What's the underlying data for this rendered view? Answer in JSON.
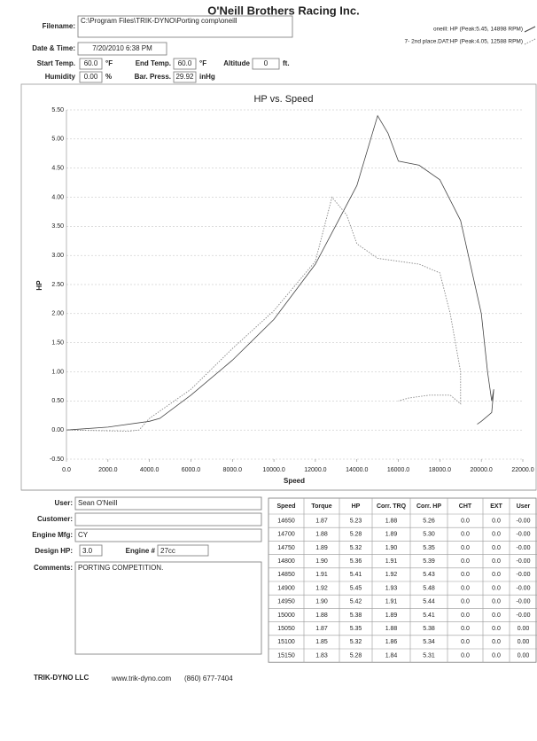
{
  "header": {
    "title": "O'Neill Brothers Racing Inc.",
    "filename": {
      "label": "Filename:",
      "value": "C:\\Program Files\\TRIK-DYNO\\Porting comp\\oneill"
    },
    "date_time": {
      "label": "Date & Time:",
      "value": "7/20/2010 6:38 PM"
    },
    "start_temp": {
      "label": "Start Temp.",
      "value": "60.0",
      "unit": "°F"
    },
    "end_temp": {
      "label": "End Temp.",
      "value": "60.0",
      "unit": "°F"
    },
    "altitude": {
      "label": "Altitude",
      "value": "0",
      "unit": "ft."
    },
    "humidity": {
      "label": "Humidity",
      "value": "0.00",
      "unit": "%"
    },
    "bar_press": {
      "label": "Bar. Press.",
      "value": "29.92",
      "unit": "inHg"
    }
  },
  "chart_data": {
    "type": "line",
    "title": "HP vs. Speed",
    "x_label": "Speed",
    "y_label": "HP",
    "xlim": [
      0,
      22000
    ],
    "ylim": [
      -0.5,
      5.5
    ],
    "grid": true,
    "legend": "top-right",
    "xticks": [
      {
        "value": 0,
        "label": "0.0"
      },
      {
        "value": 2000,
        "label": "2000.0"
      },
      {
        "value": 4000,
        "label": "4000.0"
      },
      {
        "value": 6000,
        "label": "6000.0"
      },
      {
        "value": 8000,
        "label": "8000.0"
      },
      {
        "value": 10000,
        "label": "10000.0"
      },
      {
        "value": 12000,
        "label": "12000.0"
      },
      {
        "value": 14000,
        "label": "14000.0"
      },
      {
        "value": 16000,
        "label": "16000.0"
      },
      {
        "value": 18000,
        "label": "18000.0"
      },
      {
        "value": 20000,
        "label": "20000.0"
      },
      {
        "value": 22000,
        "label": "22000.0"
      }
    ],
    "yticks": [
      {
        "value": -0.5,
        "label": "-0.50"
      },
      {
        "value": 0,
        "label": "0.00"
      },
      {
        "value": 0.5,
        "label": "0.50"
      },
      {
        "value": 1,
        "label": "1.00"
      },
      {
        "value": 1.5,
        "label": "1.50"
      },
      {
        "value": 2,
        "label": "2.00"
      },
      {
        "value": 2.5,
        "label": "2.50"
      },
      {
        "value": 3,
        "label": "3.00"
      },
      {
        "value": 3.5,
        "label": "3.50"
      },
      {
        "value": 4,
        "label": "4.00"
      },
      {
        "value": 4.5,
        "label": "4.50"
      },
      {
        "value": 5,
        "label": "5.00"
      },
      {
        "value": 5.5,
        "label": "5.50"
      }
    ],
    "series": [
      {
        "name": "oneill: HP (Peak:5.45, 14898 RPM)",
        "color": "#444444",
        "style": "solid",
        "x": [
          0,
          2000,
          4000,
          4500,
          6000,
          8000,
          10000,
          12000,
          14000,
          15000,
          15500,
          16000,
          17000,
          18000,
          19000,
          20000,
          20300,
          20500,
          20600,
          20500,
          20000,
          19800
        ],
        "values": [
          0,
          0.05,
          0.15,
          0.2,
          0.6,
          1.2,
          1.9,
          2.85,
          4.2,
          5.4,
          5.1,
          4.62,
          4.55,
          4.3,
          3.6,
          2.0,
          1.0,
          0.5,
          0.7,
          0.3,
          0.15,
          0.1
        ]
      },
      {
        "name": "7- 2nd place.DAT:HP (Peak:4.05, 12588 RPM)",
        "color": "#888888",
        "style": "dotted",
        "x": [
          0,
          3000,
          3500,
          4000,
          6000,
          8000,
          10000,
          12000,
          12800,
          13500,
          14000,
          15000,
          16000,
          17000,
          18000,
          18500,
          19000,
          19000,
          18500,
          17500,
          16500,
          16000
        ],
        "values": [
          0,
          -0.02,
          0,
          0.2,
          0.7,
          1.4,
          2.05,
          2.9,
          4.0,
          3.7,
          3.2,
          2.95,
          2.9,
          2.85,
          2.7,
          2.0,
          1.0,
          0.45,
          0.6,
          0.6,
          0.55,
          0.5
        ]
      }
    ]
  },
  "form": {
    "user": {
      "label": "User:",
      "value": "Sean O'Neill"
    },
    "customer": {
      "label": "Customer:"
    },
    "engine_mfg": {
      "label": "Engine Mfg:",
      "value": "CY"
    },
    "design_hp": {
      "label": "Design HP:",
      "value": "3.0"
    },
    "engine_no": {
      "label": "Engine #",
      "value": "27cc"
    },
    "comments": {
      "label": "Comments:",
      "value": "PORTING COMPETITION."
    }
  },
  "table": {
    "columns": [
      "Speed",
      "Torque",
      "HP",
      "Corr. TRQ",
      "Corr. HP",
      "CHT",
      "EXT",
      "User"
    ],
    "rows": [
      [
        "14650",
        "1.87",
        "5.23",
        "1.88",
        "5.26",
        "0.0",
        "0.0",
        "-0.00"
      ],
      [
        "14700",
        "1.88",
        "5.28",
        "1.89",
        "5.30",
        "0.0",
        "0.0",
        "-0.00"
      ],
      [
        "14750",
        "1.89",
        "5.32",
        "1.90",
        "5.35",
        "0.0",
        "0.0",
        "-0.00"
      ],
      [
        "14800",
        "1.90",
        "5.36",
        "1.91",
        "5.39",
        "0.0",
        "0.0",
        "-0.00"
      ],
      [
        "14850",
        "1.91",
        "5.41",
        "1.92",
        "5.43",
        "0.0",
        "0.0",
        "-0.00"
      ],
      [
        "14900",
        "1.92",
        "5.45",
        "1.93",
        "5.48",
        "0.0",
        "0.0",
        "-0.00"
      ],
      [
        "14950",
        "1.90",
        "5.42",
        "1.91",
        "5.44",
        "0.0",
        "0.0",
        "-0.00"
      ],
      [
        "15000",
        "1.88",
        "5.38",
        "1.89",
        "5.41",
        "0.0",
        "0.0",
        "-0.00"
      ],
      [
        "15050",
        "1.87",
        "5.35",
        "1.88",
        "5.38",
        "0.0",
        "0.0",
        "0.00"
      ],
      [
        "15100",
        "1.85",
        "5.32",
        "1.86",
        "5.34",
        "0.0",
        "0.0",
        "0.00"
      ],
      [
        "15150",
        "1.83",
        "5.28",
        "1.84",
        "5.31",
        "0.0",
        "0.0",
        "0.00"
      ]
    ]
  },
  "footer": {
    "company": "TRIK-DYNO LLC",
    "website": "www.trik-dyno.com",
    "phone": "(860) 677-7404"
  }
}
